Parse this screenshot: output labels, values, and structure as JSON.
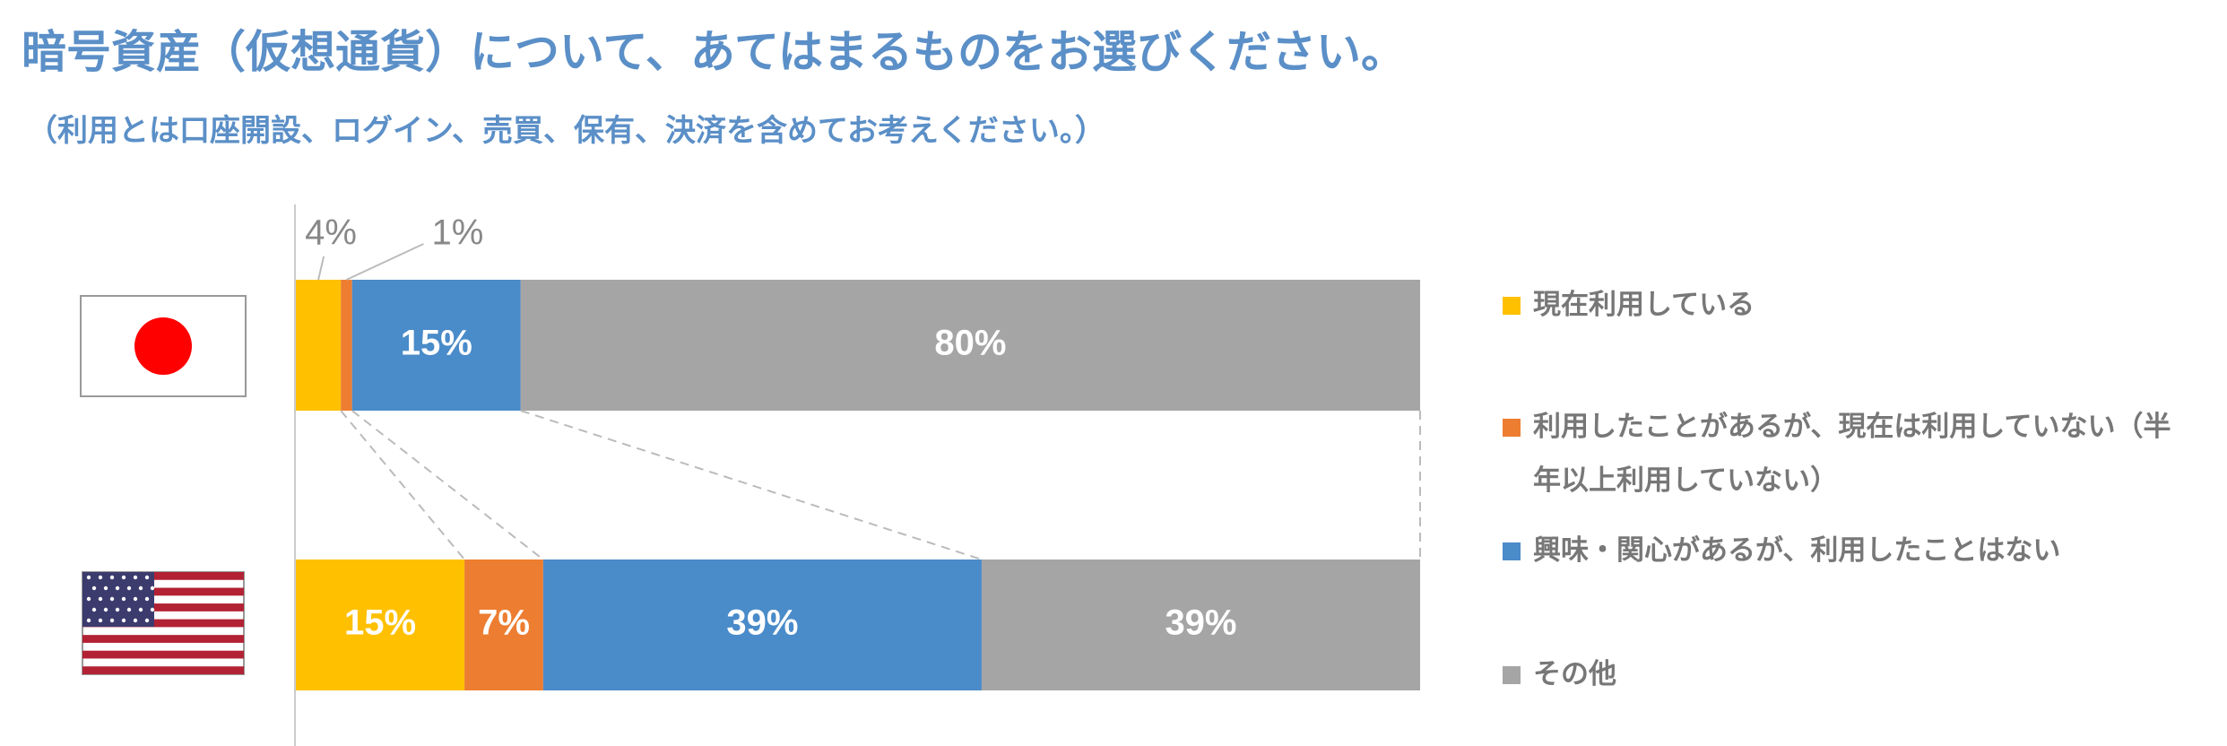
{
  "chart_data": {
    "type": "stacked_bar_horizontal",
    "title": "暗号資産（仮想通貨）について、あてはまるものをお選びください。",
    "subtitle": "（利用とは口座開設、ログイン、売買、保有、決済を含めてお考えください。）",
    "categories": [
      null,
      null
    ],
    "xlim": [
      0,
      100
    ],
    "series": [
      {
        "name": "現在利用している",
        "color": "#ffc000",
        "values": [
          4,
          15
        ],
        "value_labels": [
          "4%",
          "15%"
        ]
      },
      {
        "name": "利用したことがあるが、現在は利用していない（半年以上利用していない）",
        "color": "#ed7d31",
        "values": [
          1,
          7
        ],
        "value_labels": [
          "1%",
          "7%"
        ]
      },
      {
        "name": "興味・関心があるが、利用したことはない",
        "color": "#4a8bc9",
        "values": [
          15,
          39
        ],
        "value_labels": [
          "15%",
          "39%"
        ]
      },
      {
        "name": "その他",
        "color": "#a5a5a5",
        "values": [
          80,
          39
        ],
        "value_labels": [
          "80%",
          "39%"
        ]
      }
    ]
  }
}
